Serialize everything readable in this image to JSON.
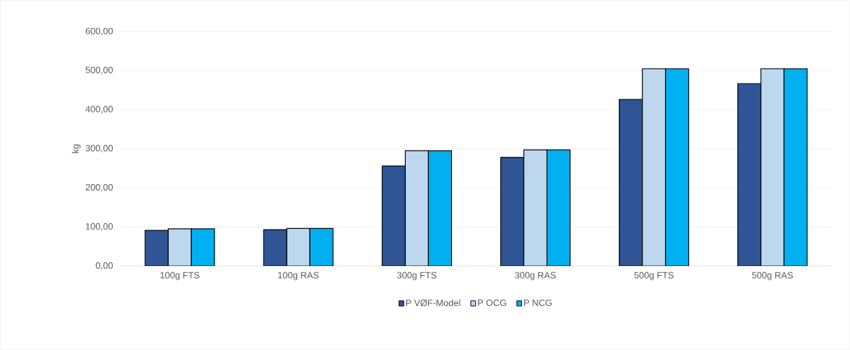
{
  "chart_data": {
    "type": "bar",
    "ylabel": "kg",
    "categories": [
      "100g FTS",
      "100g RAS",
      "300g FTS",
      "300g RAS",
      "500g FTS",
      "500g RAS"
    ],
    "series": [
      {
        "name": "P VØF-Model",
        "color": "#2f5597",
        "values": [
          91,
          93,
          256,
          278,
          426,
          467
        ]
      },
      {
        "name": "P OCG",
        "color": "#bdd7ee",
        "values": [
          95,
          96,
          295,
          297,
          505,
          505
        ]
      },
      {
        "name": "P NCG",
        "color": "#00b0f0",
        "values": [
          95,
          96,
          295,
          297,
          505,
          505
        ]
      }
    ],
    "ylim": [
      0,
      600
    ],
    "yticks": [
      {
        "value": 0,
        "label": "0,00"
      },
      {
        "value": 100,
        "label": "100,00"
      },
      {
        "value": 200,
        "label": "200,00"
      },
      {
        "value": 300,
        "label": "300,00"
      },
      {
        "value": 400,
        "label": "400,00"
      },
      {
        "value": 500,
        "label": "500,00"
      },
      {
        "value": 600,
        "label": "600,00"
      }
    ],
    "grid": "y",
    "legend": "bottom"
  }
}
